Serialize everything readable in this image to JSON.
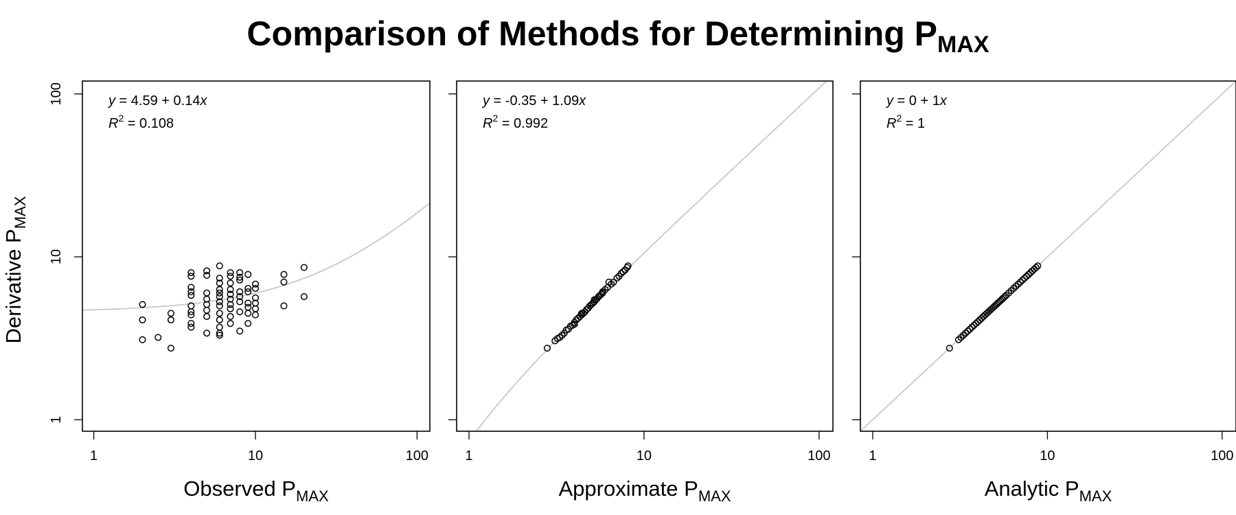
{
  "figure": {
    "title_main": "Comparison of Methods for Determining P",
    "title_sub": "MAX",
    "ylabel_main": "Derivative P",
    "ylabel_sub": "MAX"
  },
  "chart_data": [
    {
      "type": "scatter",
      "xlabel_main": "Observed P",
      "xlabel_sub": "MAX",
      "xlog": true,
      "ylog": true,
      "xlim": [
        0.85,
        120
      ],
      "ylim": [
        0.85,
        120
      ],
      "xticks": [
        1,
        10,
        100
      ],
      "yticks": [
        1,
        10,
        100
      ],
      "equation": {
        "prefix": "y",
        "eqsign": " = ",
        "body": "4.59 + 0.14",
        "var": "x"
      },
      "r2": {
        "label": "R",
        "sup": "2",
        "eqsign": " = ",
        "value": "0.108"
      },
      "fit_line": {
        "intercept": 4.59,
        "slope": 0.14,
        "color": "#c8c8c8"
      },
      "points": [
        [
          2,
          5.1
        ],
        [
          2,
          4.1
        ],
        [
          2,
          3.1
        ],
        [
          2.5,
          3.2
        ],
        [
          3,
          4.5
        ],
        [
          3,
          4.1
        ],
        [
          3,
          2.75
        ],
        [
          4,
          8.0
        ],
        [
          4,
          7.6
        ],
        [
          4,
          6.5
        ],
        [
          4,
          6.1
        ],
        [
          4,
          5.8
        ],
        [
          4,
          5.0
        ],
        [
          4,
          4.6
        ],
        [
          4,
          4.4
        ],
        [
          4,
          3.9
        ],
        [
          4,
          3.7
        ],
        [
          5,
          8.2
        ],
        [
          5,
          7.7
        ],
        [
          5,
          6.0
        ],
        [
          5,
          5.5
        ],
        [
          5,
          5.1
        ],
        [
          5,
          4.7
        ],
        [
          5,
          4.3
        ],
        [
          5,
          3.4
        ],
        [
          6,
          8.8
        ],
        [
          6,
          7.4
        ],
        [
          6,
          6.9
        ],
        [
          6,
          6.3
        ],
        [
          6,
          6.0
        ],
        [
          6,
          5.7
        ],
        [
          6,
          5.3
        ],
        [
          6,
          5.0
        ],
        [
          6,
          4.5
        ],
        [
          6,
          4.1
        ],
        [
          6,
          3.7
        ],
        [
          6,
          3.4
        ],
        [
          6,
          3.3
        ],
        [
          7,
          8.0
        ],
        [
          7,
          7.6
        ],
        [
          7,
          6.9
        ],
        [
          7,
          6.3
        ],
        [
          7,
          5.9
        ],
        [
          7,
          5.5
        ],
        [
          7,
          5.1
        ],
        [
          7,
          4.8
        ],
        [
          7,
          4.3
        ],
        [
          7,
          3.9
        ],
        [
          8,
          8.0
        ],
        [
          8,
          7.5
        ],
        [
          8,
          7.2
        ],
        [
          8,
          6.1
        ],
        [
          8,
          5.7
        ],
        [
          8,
          5.3
        ],
        [
          8,
          4.6
        ],
        [
          8,
          3.5
        ],
        [
          9,
          7.8
        ],
        [
          9,
          6.4
        ],
        [
          9,
          6.1
        ],
        [
          9,
          5.2
        ],
        [
          9,
          4.9
        ],
        [
          9,
          4.5
        ],
        [
          9,
          3.9
        ],
        [
          10,
          6.8
        ],
        [
          10,
          6.4
        ],
        [
          10,
          5.6
        ],
        [
          10,
          5.2
        ],
        [
          10,
          4.8
        ],
        [
          10,
          4.4
        ],
        [
          15,
          7.8
        ],
        [
          15,
          7.0
        ],
        [
          15,
          5.0
        ],
        [
          20,
          8.6
        ],
        [
          20,
          5.7
        ]
      ]
    },
    {
      "type": "scatter",
      "xlabel_main": "Approximate P",
      "xlabel_sub": "MAX",
      "xlog": true,
      "ylog": true,
      "xlim": [
        0.85,
        120
      ],
      "ylim": [
        0.85,
        120
      ],
      "xticks": [
        1,
        10,
        100
      ],
      "yticks": [
        1,
        10,
        100
      ],
      "equation": {
        "prefix": "y",
        "eqsign": " = ",
        "body": "-0.35 + 1.09",
        "var": "x"
      },
      "r2": {
        "label": "R",
        "sup": "2",
        "eqsign": " = ",
        "value": "0.992"
      },
      "fit_line": {
        "intercept": -0.35,
        "slope": 1.09,
        "color": "#c8c8c8"
      },
      "points": [
        [
          2.8,
          2.75
        ],
        [
          3.1,
          3.05
        ],
        [
          3.2,
          3.15
        ],
        [
          3.3,
          3.2
        ],
        [
          3.4,
          3.3
        ],
        [
          3.5,
          3.4
        ],
        [
          3.6,
          3.55
        ],
        [
          3.7,
          3.6
        ],
        [
          3.8,
          3.75
        ],
        [
          3.9,
          3.8
        ],
        [
          4.0,
          3.95
        ],
        [
          4.1,
          4.1
        ],
        [
          4.2,
          4.2
        ],
        [
          4.3,
          4.3
        ],
        [
          4.4,
          4.4
        ],
        [
          4.5,
          4.5
        ],
        [
          4.6,
          4.6
        ],
        [
          4.7,
          4.75
        ],
        [
          4.8,
          4.85
        ],
        [
          4.9,
          5.0
        ],
        [
          5.0,
          5.1
        ],
        [
          5.1,
          5.2
        ],
        [
          5.2,
          5.3
        ],
        [
          5.3,
          5.45
        ],
        [
          5.4,
          5.55
        ],
        [
          5.5,
          5.7
        ],
        [
          5.6,
          5.8
        ],
        [
          5.7,
          5.9
        ],
        [
          5.8,
          6.0
        ],
        [
          6.0,
          6.3
        ],
        [
          6.2,
          6.5
        ],
        [
          6.3,
          7.0
        ],
        [
          6.5,
          6.8
        ],
        [
          6.7,
          7.0
        ],
        [
          7.0,
          7.4
        ],
        [
          7.2,
          7.6
        ],
        [
          7.4,
          7.9
        ],
        [
          7.6,
          8.1
        ],
        [
          7.8,
          8.3
        ],
        [
          8.0,
          8.6
        ],
        [
          8.1,
          8.8
        ],
        [
          4.0,
          3.85
        ],
        [
          4.4,
          4.5
        ],
        [
          5.2,
          5.45
        ],
        [
          5.8,
          6.1
        ]
      ]
    },
    {
      "type": "scatter",
      "xlabel_main": "Analytic P",
      "xlabel_sub": "MAX",
      "xlog": true,
      "ylog": true,
      "xlim": [
        0.85,
        120
      ],
      "ylim": [
        0.85,
        120
      ],
      "xticks": [
        1,
        10,
        100
      ],
      "yticks": [
        1,
        10,
        100
      ],
      "equation": {
        "prefix": "y",
        "eqsign": " = ",
        "body": "0 + 1",
        "var": "x"
      },
      "r2": {
        "label": "R",
        "sup": "2",
        "eqsign": " = ",
        "value": "1"
      },
      "fit_line": {
        "intercept": 0,
        "slope": 1,
        "color": "#c8c8c8"
      },
      "points": [
        [
          2.75,
          2.75
        ],
        [
          3.1,
          3.1
        ],
        [
          3.2,
          3.2
        ],
        [
          3.3,
          3.3
        ],
        [
          3.4,
          3.4
        ],
        [
          3.5,
          3.5
        ],
        [
          3.6,
          3.6
        ],
        [
          3.7,
          3.7
        ],
        [
          3.8,
          3.8
        ],
        [
          3.9,
          3.9
        ],
        [
          4.0,
          4.0
        ],
        [
          4.1,
          4.1
        ],
        [
          4.2,
          4.2
        ],
        [
          4.3,
          4.3
        ],
        [
          4.4,
          4.4
        ],
        [
          4.5,
          4.5
        ],
        [
          4.6,
          4.6
        ],
        [
          4.7,
          4.7
        ],
        [
          4.8,
          4.8
        ],
        [
          4.9,
          4.9
        ],
        [
          5.0,
          5.0
        ],
        [
          5.1,
          5.1
        ],
        [
          5.2,
          5.2
        ],
        [
          5.3,
          5.3
        ],
        [
          5.4,
          5.4
        ],
        [
          5.5,
          5.5
        ],
        [
          5.6,
          5.6
        ],
        [
          5.7,
          5.7
        ],
        [
          5.8,
          5.8
        ],
        [
          6.0,
          6.0
        ],
        [
          6.2,
          6.2
        ],
        [
          6.4,
          6.4
        ],
        [
          6.6,
          6.6
        ],
        [
          6.8,
          6.8
        ],
        [
          7.0,
          7.0
        ],
        [
          7.2,
          7.2
        ],
        [
          7.4,
          7.4
        ],
        [
          7.6,
          7.6
        ],
        [
          7.8,
          7.8
        ],
        [
          8.0,
          8.0
        ],
        [
          8.2,
          8.2
        ],
        [
          8.4,
          8.4
        ],
        [
          8.6,
          8.6
        ],
        [
          8.8,
          8.8
        ]
      ]
    }
  ]
}
